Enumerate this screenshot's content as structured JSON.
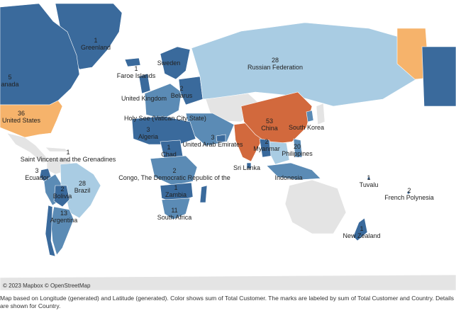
{
  "colors": {
    "ocean": "#ffffff",
    "no_data": "#e4e4e4",
    "light": "#a9cce3",
    "mid": "#5b8bb5",
    "dark": "#3a6a9c",
    "orange_light": "#f6b36b",
    "orange_dark": "#d2693d"
  },
  "labels": [
    {
      "id": "greenland",
      "value": "1",
      "name": "Greenland"
    },
    {
      "id": "canada",
      "value": "5",
      "name": "anada"
    },
    {
      "id": "united-states",
      "value": "36",
      "name": "United States"
    },
    {
      "id": "faroe",
      "value": "1",
      "name": "Faroe Islands"
    },
    {
      "id": "sweden",
      "value": "",
      "name": "Sweden"
    },
    {
      "id": "uk",
      "value": "",
      "name": "United Kingdom"
    },
    {
      "id": "belarus",
      "value": "2",
      "name": "Belarus"
    },
    {
      "id": "holy-see",
      "value": "",
      "name": "Holy See (Vatican City State)"
    },
    {
      "id": "algeria",
      "value": "3",
      "name": "Algeria"
    },
    {
      "id": "chad",
      "value": "1",
      "name": "Chad"
    },
    {
      "id": "uae",
      "value": "3",
      "name": "United Arab Emirates"
    },
    {
      "id": "russia",
      "value": "28",
      "name": "Russian Federation"
    },
    {
      "id": "china",
      "value": "53",
      "name": "China"
    },
    {
      "id": "south-korea",
      "value": "",
      "name": "South Korea"
    },
    {
      "id": "myanmar",
      "value": "2",
      "name": "Myanmar"
    },
    {
      "id": "philippines",
      "value": "20",
      "name": "Philippines"
    },
    {
      "id": "sri-lanka",
      "value": "",
      "name": "Sri Lanka"
    },
    {
      "id": "indonesia",
      "value": "",
      "name": "Indonesia"
    },
    {
      "id": "saint-vincent",
      "value": "1",
      "name": "Saint Vincent and the Grenadines"
    },
    {
      "id": "ecuador",
      "value": "3",
      "name": "Ecuador"
    },
    {
      "id": "congo",
      "value": "2",
      "name": "Congo, The Democratic Republic of the"
    },
    {
      "id": "brazil",
      "value": "28",
      "name": "Brazil"
    },
    {
      "id": "bolivia",
      "value": "2",
      "name": "Bolivia"
    },
    {
      "id": "zambia",
      "value": "1",
      "name": "Zambia"
    },
    {
      "id": "south-africa",
      "value": "11",
      "name": "South Africa"
    },
    {
      "id": "argentina",
      "value": "13",
      "name": "Argentina"
    },
    {
      "id": "tuvalu",
      "value": "1",
      "name": "Tuvalu"
    },
    {
      "id": "french-polynesia",
      "value": "2",
      "name": "French Polynesia"
    },
    {
      "id": "new-zealand",
      "value": "1",
      "name": "New Zealand"
    }
  ],
  "attribution": "© 2023 Mapbox © OpenStreetMap",
  "caption": "Map based on Longitude (generated) and Latitude (generated).  Color shows sum of Total Customer.  The marks are labeled by sum of Total Customer and Country.  Details are shown for Country."
}
